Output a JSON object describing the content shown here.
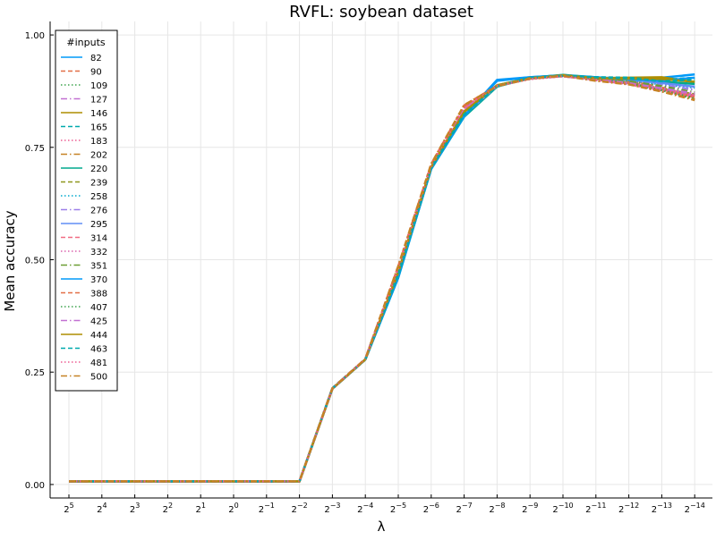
{
  "chart_data": {
    "type": "line",
    "title": "RVFL: soybean dataset",
    "xlabel": "λ",
    "ylabel": "Mean accuracy",
    "x_exponents": [
      5,
      4,
      3,
      2,
      1,
      0,
      -1,
      -2,
      -3,
      -4,
      -5,
      -6,
      -7,
      -8,
      -9,
      -10,
      -11,
      -12,
      -13,
      -14
    ],
    "x_tick_labels": [
      {
        "base": "2",
        "exp": "5"
      },
      {
        "base": "2",
        "exp": "4"
      },
      {
        "base": "2",
        "exp": "3"
      },
      {
        "base": "2",
        "exp": "2"
      },
      {
        "base": "2",
        "exp": "1"
      },
      {
        "base": "2",
        "exp": "0"
      },
      {
        "base": "2",
        "exp": "−1"
      },
      {
        "base": "2",
        "exp": "−2"
      },
      {
        "base": "2",
        "exp": "−3"
      },
      {
        "base": "2",
        "exp": "−4"
      },
      {
        "base": "2",
        "exp": "−5"
      },
      {
        "base": "2",
        "exp": "−6"
      },
      {
        "base": "2",
        "exp": "−7"
      },
      {
        "base": "2",
        "exp": "−8"
      },
      {
        "base": "2",
        "exp": "−9"
      },
      {
        "base": "2",
        "exp": "−10"
      },
      {
        "base": "2",
        "exp": "−11"
      },
      {
        "base": "2",
        "exp": "−12"
      },
      {
        "base": "2",
        "exp": "−13"
      },
      {
        "base": "2",
        "exp": "−14"
      }
    ],
    "y_ticks": [
      0.0,
      0.25,
      0.5,
      0.75,
      1.0
    ],
    "y_tick_labels": [
      "0.00",
      "0.25",
      "0.50",
      "0.75",
      "1.00"
    ],
    "ylim": [
      -0.03,
      1.03
    ],
    "grid": true,
    "legend": {
      "title": "#inputs",
      "position": "top-left"
    },
    "colors": [
      "#009af9",
      "#e26f46",
      "#3ea44e",
      "#c270d2",
      "#ad8e00",
      "#00a9ad",
      "#ed5e93",
      "#c68225",
      "#00a98d",
      "#8e971d",
      "#00a9cd",
      "#9b7fe9",
      "#618df6",
      "#f16c83",
      "#dc63ad",
      "#6c9e33"
    ],
    "series": [
      {
        "name": "82",
        "values": [
          0.007,
          0.007,
          0.007,
          0.007,
          0.007,
          0.007,
          0.007,
          0.007,
          0.213,
          0.278,
          0.46,
          0.703,
          0.82,
          0.9,
          0.906,
          0.91,
          0.905,
          0.903,
          0.905,
          0.912
        ]
      },
      {
        "name": "90",
        "values": [
          0.007,
          0.007,
          0.007,
          0.007,
          0.007,
          0.007,
          0.007,
          0.007,
          0.214,
          0.279,
          0.485,
          0.712,
          0.843,
          0.887,
          0.903,
          0.911,
          0.905,
          0.898,
          0.883,
          0.865
        ]
      },
      {
        "name": "109",
        "values": [
          0.007,
          0.007,
          0.007,
          0.007,
          0.007,
          0.007,
          0.007,
          0.007,
          0.213,
          0.278,
          0.47,
          0.705,
          0.825,
          0.887,
          0.904,
          0.909,
          0.903,
          0.892,
          0.877,
          0.86
        ]
      },
      {
        "name": "127",
        "values": [
          0.007,
          0.007,
          0.007,
          0.007,
          0.007,
          0.007,
          0.007,
          0.007,
          0.214,
          0.279,
          0.478,
          0.708,
          0.835,
          0.886,
          0.903,
          0.908,
          0.9,
          0.891,
          0.879,
          0.866
        ]
      },
      {
        "name": "146",
        "values": [
          0.007,
          0.007,
          0.007,
          0.007,
          0.007,
          0.007,
          0.007,
          0.007,
          0.213,
          0.278,
          0.473,
          0.706,
          0.83,
          0.888,
          0.904,
          0.91,
          0.904,
          0.905,
          0.906,
          0.895
        ]
      },
      {
        "name": "165",
        "values": [
          0.007,
          0.007,
          0.007,
          0.007,
          0.007,
          0.007,
          0.007,
          0.007,
          0.214,
          0.278,
          0.468,
          0.704,
          0.822,
          0.886,
          0.905,
          0.909,
          0.906,
          0.905,
          0.9,
          0.905
        ]
      },
      {
        "name": "183",
        "values": [
          0.007,
          0.007,
          0.007,
          0.007,
          0.007,
          0.007,
          0.007,
          0.007,
          0.213,
          0.279,
          0.48,
          0.709,
          0.838,
          0.887,
          0.902,
          0.908,
          0.9,
          0.89,
          0.876,
          0.862
        ]
      },
      {
        "name": "202",
        "values": [
          0.007,
          0.007,
          0.007,
          0.007,
          0.007,
          0.007,
          0.007,
          0.007,
          0.214,
          0.279,
          0.483,
          0.711,
          0.84,
          0.886,
          0.903,
          0.909,
          0.899,
          0.891,
          0.875,
          0.857
        ]
      },
      {
        "name": "220",
        "values": [
          0.007,
          0.007,
          0.007,
          0.007,
          0.007,
          0.007,
          0.007,
          0.007,
          0.213,
          0.278,
          0.462,
          0.702,
          0.818,
          0.885,
          0.905,
          0.911,
          0.906,
          0.9,
          0.896,
          0.891
        ]
      },
      {
        "name": "239",
        "values": [
          0.007,
          0.007,
          0.007,
          0.007,
          0.007,
          0.007,
          0.007,
          0.007,
          0.214,
          0.278,
          0.476,
          0.707,
          0.832,
          0.887,
          0.904,
          0.909,
          0.902,
          0.894,
          0.88,
          0.868
        ]
      },
      {
        "name": "258",
        "values": [
          0.007,
          0.007,
          0.007,
          0.007,
          0.007,
          0.007,
          0.007,
          0.007,
          0.213,
          0.279,
          0.472,
          0.705,
          0.828,
          0.886,
          0.903,
          0.91,
          0.903,
          0.899,
          0.89,
          0.883
        ]
      },
      {
        "name": "276",
        "values": [
          0.007,
          0.007,
          0.007,
          0.007,
          0.007,
          0.007,
          0.007,
          0.007,
          0.214,
          0.278,
          0.469,
          0.704,
          0.826,
          0.887,
          0.904,
          0.909,
          0.904,
          0.899,
          0.889,
          0.878
        ]
      },
      {
        "name": "295",
        "values": [
          0.007,
          0.007,
          0.007,
          0.007,
          0.007,
          0.007,
          0.007,
          0.007,
          0.213,
          0.278,
          0.465,
          0.703,
          0.822,
          0.886,
          0.905,
          0.91,
          0.905,
          0.901,
          0.893,
          0.885
        ]
      },
      {
        "name": "314",
        "values": [
          0.007,
          0.007,
          0.007,
          0.007,
          0.007,
          0.007,
          0.007,
          0.007,
          0.214,
          0.279,
          0.479,
          0.709,
          0.836,
          0.887,
          0.903,
          0.908,
          0.901,
          0.892,
          0.879,
          0.864
        ]
      },
      {
        "name": "332",
        "values": [
          0.007,
          0.007,
          0.007,
          0.007,
          0.007,
          0.007,
          0.007,
          0.007,
          0.213,
          0.279,
          0.477,
          0.708,
          0.834,
          0.886,
          0.903,
          0.909,
          0.902,
          0.893,
          0.881,
          0.866
        ]
      },
      {
        "name": "351",
        "values": [
          0.007,
          0.007,
          0.007,
          0.007,
          0.007,
          0.007,
          0.007,
          0.007,
          0.214,
          0.278,
          0.474,
          0.706,
          0.831,
          0.887,
          0.904,
          0.909,
          0.903,
          0.897,
          0.886,
          0.872
        ]
      },
      {
        "name": "370",
        "values": [
          0.007,
          0.007,
          0.007,
          0.007,
          0.007,
          0.007,
          0.007,
          0.007,
          0.213,
          0.278,
          0.463,
          0.702,
          0.819,
          0.898,
          0.906,
          0.91,
          0.906,
          0.902,
          0.898,
          0.905
        ]
      },
      {
        "name": "388",
        "values": [
          0.007,
          0.007,
          0.007,
          0.007,
          0.007,
          0.007,
          0.007,
          0.007,
          0.214,
          0.279,
          0.484,
          0.712,
          0.842,
          0.887,
          0.903,
          0.91,
          0.901,
          0.893,
          0.88,
          0.861
        ]
      },
      {
        "name": "407",
        "values": [
          0.007,
          0.007,
          0.007,
          0.007,
          0.007,
          0.007,
          0.007,
          0.007,
          0.213,
          0.278,
          0.471,
          0.705,
          0.827,
          0.886,
          0.904,
          0.909,
          0.903,
          0.893,
          0.877,
          0.858
        ]
      },
      {
        "name": "425",
        "values": [
          0.007,
          0.007,
          0.007,
          0.007,
          0.007,
          0.007,
          0.007,
          0.007,
          0.214,
          0.279,
          0.478,
          0.708,
          0.835,
          0.887,
          0.903,
          0.908,
          0.901,
          0.893,
          0.881,
          0.87
        ]
      },
      {
        "name": "444",
        "values": [
          0.007,
          0.007,
          0.007,
          0.007,
          0.007,
          0.007,
          0.007,
          0.007,
          0.213,
          0.278,
          0.472,
          0.706,
          0.829,
          0.888,
          0.904,
          0.91,
          0.904,
          0.903,
          0.902,
          0.896
        ]
      },
      {
        "name": "463",
        "values": [
          0.007,
          0.007,
          0.007,
          0.007,
          0.007,
          0.007,
          0.007,
          0.007,
          0.214,
          0.278,
          0.467,
          0.704,
          0.823,
          0.886,
          0.905,
          0.909,
          0.906,
          0.904,
          0.897,
          0.901
        ]
      },
      {
        "name": "481",
        "values": [
          0.007,
          0.007,
          0.007,
          0.007,
          0.007,
          0.007,
          0.007,
          0.007,
          0.213,
          0.279,
          0.481,
          0.71,
          0.838,
          0.887,
          0.902,
          0.908,
          0.9,
          0.891,
          0.877,
          0.863
        ]
      },
      {
        "name": "500",
        "values": [
          0.007,
          0.007,
          0.007,
          0.007,
          0.007,
          0.007,
          0.007,
          0.007,
          0.214,
          0.279,
          0.486,
          0.713,
          0.844,
          0.886,
          0.903,
          0.909,
          0.898,
          0.89,
          0.874,
          0.855
        ]
      }
    ]
  }
}
